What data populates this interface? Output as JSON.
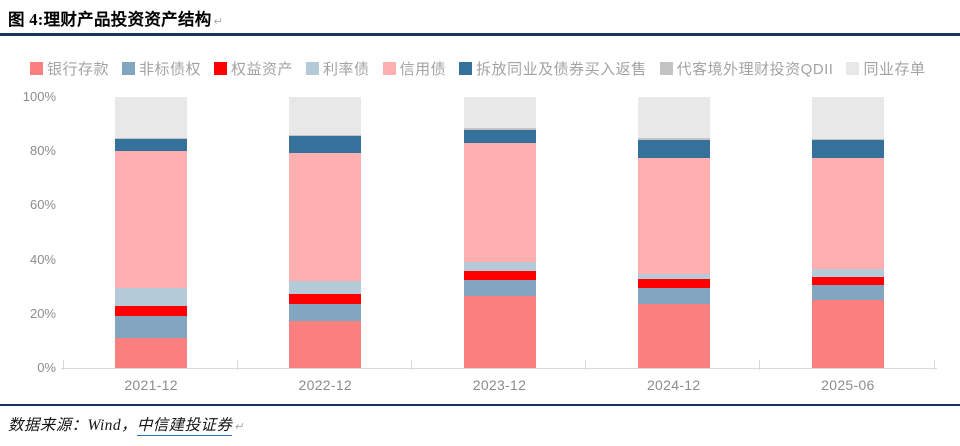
{
  "header": {
    "title": "图 4:理财产品投资资产结构",
    "paragraph_mark": "↵"
  },
  "chart_data": {
    "type": "bar",
    "stacked": true,
    "percent_stacked": true,
    "title": "图 4:理财产品投资资产结构",
    "categories": [
      "2021-12",
      "2022-12",
      "2023-12",
      "2024-12",
      "2025-06"
    ],
    "series": [
      {
        "name": "银行存款",
        "color": "#FA8080",
        "values": [
          11.1,
          17.3,
          26.5,
          23.8,
          25.0
        ]
      },
      {
        "name": "非标债权",
        "color": "#82A5C0",
        "values": [
          8.2,
          6.5,
          5.9,
          5.9,
          5.5
        ]
      },
      {
        "name": "权益资产",
        "color": "#FE0000",
        "values": [
          3.7,
          3.7,
          3.3,
          3.1,
          3.1
        ]
      },
      {
        "name": "利率债",
        "color": "#B4CAD9",
        "values": [
          6.5,
          4.6,
          3.5,
          1.8,
          3.1
        ]
      },
      {
        "name": "信用债",
        "color": "#FFAFAF",
        "values": [
          50.5,
          47.1,
          43.9,
          42.9,
          40.7
        ]
      },
      {
        "name": "拆放同业及债券买入返售",
        "color": "#36719B",
        "values": [
          4.5,
          6.5,
          4.9,
          6.8,
          6.8
        ]
      },
      {
        "name": "代客境外理财投资QDII",
        "color": "#C3C3C3",
        "values": [
          0.4,
          0.4,
          0.5,
          0.5,
          0.4
        ]
      },
      {
        "name": "同业存单",
        "color": "#E8E8E8",
        "values": [
          15.1,
          13.9,
          11.5,
          15.2,
          15.4
        ]
      }
    ],
    "xlabel": "",
    "ylabel": "",
    "ylim": [
      0,
      100
    ],
    "y_ticks": [
      0,
      20,
      40,
      60,
      80,
      100
    ],
    "y_tick_labels": [
      "0%",
      "20%",
      "40%",
      "60%",
      "80%",
      "100%"
    ],
    "grid": false,
    "legend_position": "top"
  },
  "footer": {
    "source_prefix": "数据来源：Wind，",
    "source_link": "中信建投证券",
    "paragraph_mark": "↵"
  },
  "colors": {
    "accent_rule": "#17365D",
    "axis_line": "#D9D9D9",
    "tick_label_text": "#8C8C8C",
    "legend_text": "#A3A3A3",
    "link_underline": "#2E74B5"
  }
}
